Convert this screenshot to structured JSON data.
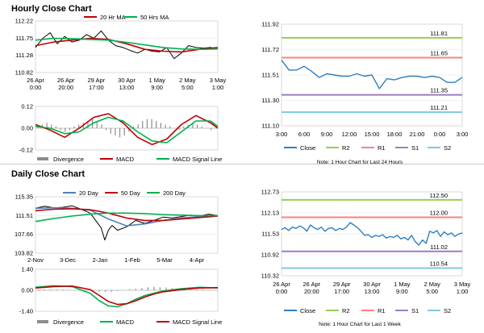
{
  "hourly": {
    "title": "Hourly Close Chart",
    "left": {
      "legend": [
        "20 Hr MA",
        "50 Hrs MA"
      ],
      "price_ticks": [
        "112.22",
        "111.75",
        "111.28",
        "110.82"
      ],
      "macd_ticks": [
        "0.12",
        "0.00",
        "-0.12"
      ],
      "x_labels": [
        [
          "26 Apr",
          "0:00"
        ],
        [
          "26 Apr",
          "20:00"
        ],
        [
          "29 Apr",
          "17:00"
        ],
        [
          "30 Apr",
          "13:00"
        ],
        [
          "1 May",
          "9:00"
        ],
        [
          "2 May",
          "5:00"
        ],
        [
          "3 May",
          "1:00"
        ]
      ],
      "macd_legend": [
        "Divergence",
        "MACD",
        "MACD Signal Line"
      ]
    },
    "right": {
      "note": "Note: 1 Hour Chart for Last 24 Hours",
      "legend": [
        "Close",
        "R2",
        "R1",
        "S1",
        "S2"
      ]
    }
  },
  "daily": {
    "title": "Daily Close Chart",
    "left": {
      "legend": [
        "20 Day",
        "50 Day",
        "200 Day"
      ],
      "price_ticks": [
        "115.35",
        "111.51",
        "107.66",
        "103.82"
      ],
      "macd_ticks": [
        "1.40",
        "0.00",
        "-1.40"
      ],
      "x_labels": [
        [
          "2-Nov"
        ],
        [
          "3-Dec"
        ],
        [
          "2-Jan"
        ],
        [
          "1-Feb"
        ],
        [
          "5-Mar"
        ],
        [
          "4-Apr"
        ]
      ],
      "macd_legend": [
        "Divergence",
        "MACD",
        "MACD Signal Line"
      ]
    },
    "right": {
      "note": "Note: 1 Hour Chart for Last 1 Week",
      "legend": [
        "Close",
        "R2",
        "R1",
        "S1",
        "S2"
      ]
    }
  },
  "colors": {
    "close": "#2f7fc1",
    "r2": "#92d050",
    "r1": "#ff7f7f",
    "s1": "#9b7fc0",
    "s2": "#7fc8e0",
    "ma_red": "#c00000",
    "ma_green": "#00b050",
    "ma_blue": "#4f81bd",
    "price": "#000000",
    "div": "#8c8c8c"
  },
  "chart_data": [
    {
      "type": "line",
      "name": "hourly-price",
      "xlim": [
        0,
        100
      ],
      "ylim": [
        110.82,
        112.22
      ],
      "series": [
        {
          "name": "Close",
          "color": "#000000",
          "x": [
            0,
            4,
            8,
            12,
            16,
            20,
            24,
            28,
            32,
            36,
            40,
            44,
            48,
            52,
            56,
            60,
            64,
            68,
            72,
            76,
            80,
            84,
            88,
            92,
            96,
            100
          ],
          "y": [
            111.5,
            111.75,
            111.9,
            111.6,
            111.8,
            111.65,
            111.7,
            111.85,
            111.75,
            111.95,
            111.7,
            111.55,
            111.5,
            111.42,
            111.35,
            111.45,
            111.4,
            111.38,
            111.5,
            111.2,
            111.35,
            111.55,
            111.5,
            111.48,
            111.5,
            111.45
          ]
        },
        {
          "name": "20 Hr MA",
          "color": "#c00000",
          "x": [
            0,
            10,
            20,
            30,
            40,
            50,
            60,
            70,
            80,
            90,
            100
          ],
          "y": [
            111.55,
            111.65,
            111.7,
            111.75,
            111.72,
            111.6,
            111.45,
            111.4,
            111.38,
            111.45,
            111.5
          ]
        },
        {
          "name": "50 Hrs MA",
          "color": "#00b050",
          "x": [
            0,
            10,
            20,
            30,
            40,
            50,
            60,
            70,
            80,
            90,
            100
          ],
          "y": [
            111.7,
            111.75,
            111.74,
            111.72,
            111.7,
            111.64,
            111.57,
            111.5,
            111.46,
            111.45,
            111.46
          ]
        }
      ]
    },
    {
      "type": "line",
      "name": "hourly-macd",
      "xlim": [
        0,
        100
      ],
      "ylim": [
        -0.12,
        0.12
      ],
      "divergence": [
        0.01,
        0.02,
        0.03,
        0.02,
        0.01,
        -0.01,
        -0.02,
        -0.01,
        0.01,
        0.02,
        0.03,
        0.04,
        0.05,
        0.04,
        0.02,
        -0.01,
        -0.03,
        -0.04,
        -0.05,
        -0.04,
        -0.02,
        0.01,
        0.02,
        0.04,
        0.05,
        0.05,
        0.04,
        0.03,
        0.02,
        0.01,
        0.0,
        -0.01,
        0.01,
        0.02,
        0.03,
        0.02,
        0.01,
        0.0,
        -0.01,
        0.0
      ],
      "series": [
        {
          "name": "MACD",
          "color": "#c00000",
          "x": [
            0,
            8,
            16,
            24,
            32,
            40,
            48,
            56,
            64,
            72,
            80,
            88,
            96,
            100
          ],
          "y": [
            0.02,
            -0.01,
            -0.05,
            0.0,
            0.06,
            0.08,
            0.03,
            -0.05,
            -0.09,
            -0.06,
            0.02,
            0.07,
            0.03,
            0.0
          ]
        },
        {
          "name": "MACD Signal Line",
          "color": "#00b050",
          "x": [
            0,
            8,
            16,
            24,
            32,
            40,
            48,
            56,
            64,
            72,
            80,
            88,
            96,
            100
          ],
          "y": [
            0.01,
            0.0,
            -0.03,
            -0.02,
            0.03,
            0.06,
            0.04,
            -0.02,
            -0.07,
            -0.08,
            -0.02,
            0.04,
            0.04,
            0.01
          ]
        }
      ]
    },
    {
      "type": "line",
      "name": "hourly-levels",
      "categories": [
        "3:00",
        "6:00",
        "9:00",
        "12:00",
        "15:00",
        "18:00",
        "21:00",
        "0:00",
        "3:00"
      ],
      "ylim": [
        111.1,
        111.92
      ],
      "y_ticks": [
        "111.92",
        "111.72",
        "111.51",
        "111.30",
        "111.10"
      ],
      "series": [
        {
          "name": "Close",
          "color": "#2f7fc1",
          "x": [
            0,
            1,
            2,
            3,
            4,
            5,
            6,
            7,
            8,
            9,
            10,
            11,
            12,
            13,
            14,
            15,
            16,
            17,
            18,
            19,
            20,
            21,
            22,
            23,
            24
          ],
          "y": [
            111.63,
            111.55,
            111.55,
            111.58,
            111.54,
            111.49,
            111.52,
            111.51,
            111.5,
            111.5,
            111.52,
            111.5,
            111.51,
            111.4,
            111.48,
            111.47,
            111.49,
            111.5,
            111.5,
            111.49,
            111.5,
            111.49,
            111.45,
            111.45,
            111.49
          ]
        },
        {
          "name": "R2",
          "color": "#92d050",
          "value": 111.81,
          "label": "111.81"
        },
        {
          "name": "R1",
          "color": "#ff7f7f",
          "value": 111.65,
          "label": "111.65"
        },
        {
          "name": "S1",
          "color": "#9b7fc0",
          "value": 111.35,
          "label": "111.35"
        },
        {
          "name": "S2",
          "color": "#7fc8e0",
          "value": 111.21,
          "label": "111.21"
        }
      ]
    },
    {
      "type": "line",
      "name": "daily-price",
      "xlim": [
        0,
        100
      ],
      "ylim": [
        103.82,
        115.35
      ],
      "series": [
        {
          "name": "Close",
          "color": "#000000",
          "x": [
            0,
            5,
            10,
            15,
            20,
            25,
            30,
            33,
            36,
            38,
            40,
            42,
            45,
            50,
            55,
            60,
            65,
            70,
            75,
            80,
            85,
            90,
            95,
            100
          ],
          "y": [
            113.0,
            113.4,
            113.1,
            113.2,
            113.5,
            112.8,
            112.0,
            110.5,
            109.0,
            106.5,
            108.5,
            109.5,
            108.5,
            109.2,
            110.5,
            109.9,
            110.5,
            111.2,
            111.0,
            111.3,
            111.6,
            111.4,
            111.8,
            111.5
          ]
        },
        {
          "name": "20 Day",
          "color": "#4f81bd",
          "x": [
            0,
            10,
            20,
            30,
            40,
            50,
            60,
            70,
            80,
            90,
            100
          ],
          "y": [
            113.0,
            113.1,
            113.0,
            112.6,
            110.8,
            109.4,
            109.8,
            110.5,
            111.0,
            111.3,
            111.5
          ]
        },
        {
          "name": "50 Day",
          "color": "#c00000",
          "x": [
            0,
            10,
            20,
            30,
            40,
            50,
            60,
            70,
            80,
            90,
            100
          ],
          "y": [
            112.5,
            112.8,
            112.9,
            112.7,
            112.0,
            111.0,
            110.5,
            110.5,
            110.8,
            111.1,
            111.4
          ]
        },
        {
          "name": "200 Day",
          "color": "#00b050",
          "x": [
            0,
            10,
            20,
            30,
            40,
            50,
            60,
            70,
            80,
            90,
            100
          ],
          "y": [
            110.3,
            110.9,
            111.4,
            111.8,
            112.0,
            112.0,
            111.9,
            111.7,
            111.6,
            111.5,
            111.5
          ]
        }
      ]
    },
    {
      "type": "line",
      "name": "daily-macd",
      "xlim": [
        0,
        100
      ],
      "ylim": [
        -1.4,
        1.4
      ],
      "divergence": [
        0.05,
        0.06,
        0.06,
        0.05,
        0.04,
        0.03,
        0.02,
        0.0,
        -0.02,
        -0.05,
        -0.1,
        -0.12,
        -0.1,
        -0.05,
        0.0,
        0.05,
        0.1,
        0.15,
        0.2,
        0.22,
        0.2,
        0.18,
        0.15,
        0.1,
        0.08,
        0.06,
        0.05,
        0.04,
        0.03,
        0.02
      ],
      "series": [
        {
          "name": "MACD",
          "color": "#00b050",
          "x": [
            0,
            10,
            20,
            30,
            35,
            40,
            45,
            50,
            55,
            60,
            65,
            70,
            80,
            90,
            100
          ],
          "y": [
            0.2,
            0.3,
            0.25,
            -0.2,
            -0.7,
            -1.05,
            -1.1,
            -0.9,
            -0.6,
            -0.35,
            -0.2,
            -0.05,
            0.1,
            0.2,
            0.15
          ]
        },
        {
          "name": "MACD Signal Line",
          "color": "#c00000",
          "x": [
            0,
            10,
            20,
            30,
            35,
            40,
            45,
            50,
            55,
            60,
            65,
            70,
            80,
            90,
            100
          ],
          "y": [
            0.15,
            0.25,
            0.28,
            0.05,
            -0.35,
            -0.75,
            -0.95,
            -0.9,
            -0.7,
            -0.45,
            -0.25,
            -0.1,
            0.05,
            0.15,
            0.18
          ]
        }
      ]
    },
    {
      "type": "line",
      "name": "daily-levels",
      "categories": [
        [
          "26 Apr",
          "0:00"
        ],
        [
          "26 Apr",
          "20:00"
        ],
        [
          "29 Apr",
          "17:00"
        ],
        [
          "30 Apr",
          "13:00"
        ],
        [
          "1 May",
          "9:00"
        ],
        [
          "2 May",
          "5:00"
        ],
        [
          "3 May",
          "1:00"
        ]
      ],
      "ylim": [
        110.32,
        112.73
      ],
      "y_ticks": [
        "112.73",
        "112.13",
        "111.53",
        "110.92",
        "110.32"
      ],
      "series": [
        {
          "name": "Close",
          "color": "#2f7fc1",
          "x": [
            0,
            2,
            4,
            6,
            8,
            10,
            12,
            14,
            16,
            18,
            20,
            22,
            24,
            26,
            28,
            30,
            32,
            34,
            36,
            38,
            40,
            42,
            44,
            46,
            48,
            50,
            52,
            54,
            56,
            58,
            60,
            62,
            64,
            66,
            68,
            70,
            72,
            74,
            76,
            78,
            80,
            82,
            84,
            86,
            88,
            90,
            92,
            94,
            96,
            98,
            100
          ],
          "y": [
            111.65,
            111.7,
            111.62,
            111.72,
            111.68,
            111.75,
            111.7,
            111.6,
            111.78,
            111.7,
            111.65,
            111.72,
            111.6,
            111.68,
            111.7,
            111.62,
            111.68,
            111.65,
            111.72,
            111.85,
            111.78,
            111.7,
            111.6,
            111.48,
            111.5,
            111.42,
            111.48,
            111.45,
            111.5,
            111.4,
            111.45,
            111.42,
            111.48,
            111.38,
            111.42,
            111.35,
            111.48,
            111.3,
            111.2,
            111.35,
            111.25,
            111.6,
            111.55,
            111.62,
            111.45,
            111.58,
            111.5,
            111.55,
            111.45,
            111.52,
            111.55
          ]
        },
        {
          "name": "R2",
          "color": "#92d050",
          "value": 112.5,
          "label": "112.50"
        },
        {
          "name": "R1",
          "color": "#ff7f7f",
          "value": 112.0,
          "label": "112.00"
        },
        {
          "name": "S1",
          "color": "#9b7fc0",
          "value": 111.02,
          "label": "111.02"
        },
        {
          "name": "S2",
          "color": "#7fc8e0",
          "value": 110.54,
          "label": "110.54"
        }
      ]
    }
  ]
}
